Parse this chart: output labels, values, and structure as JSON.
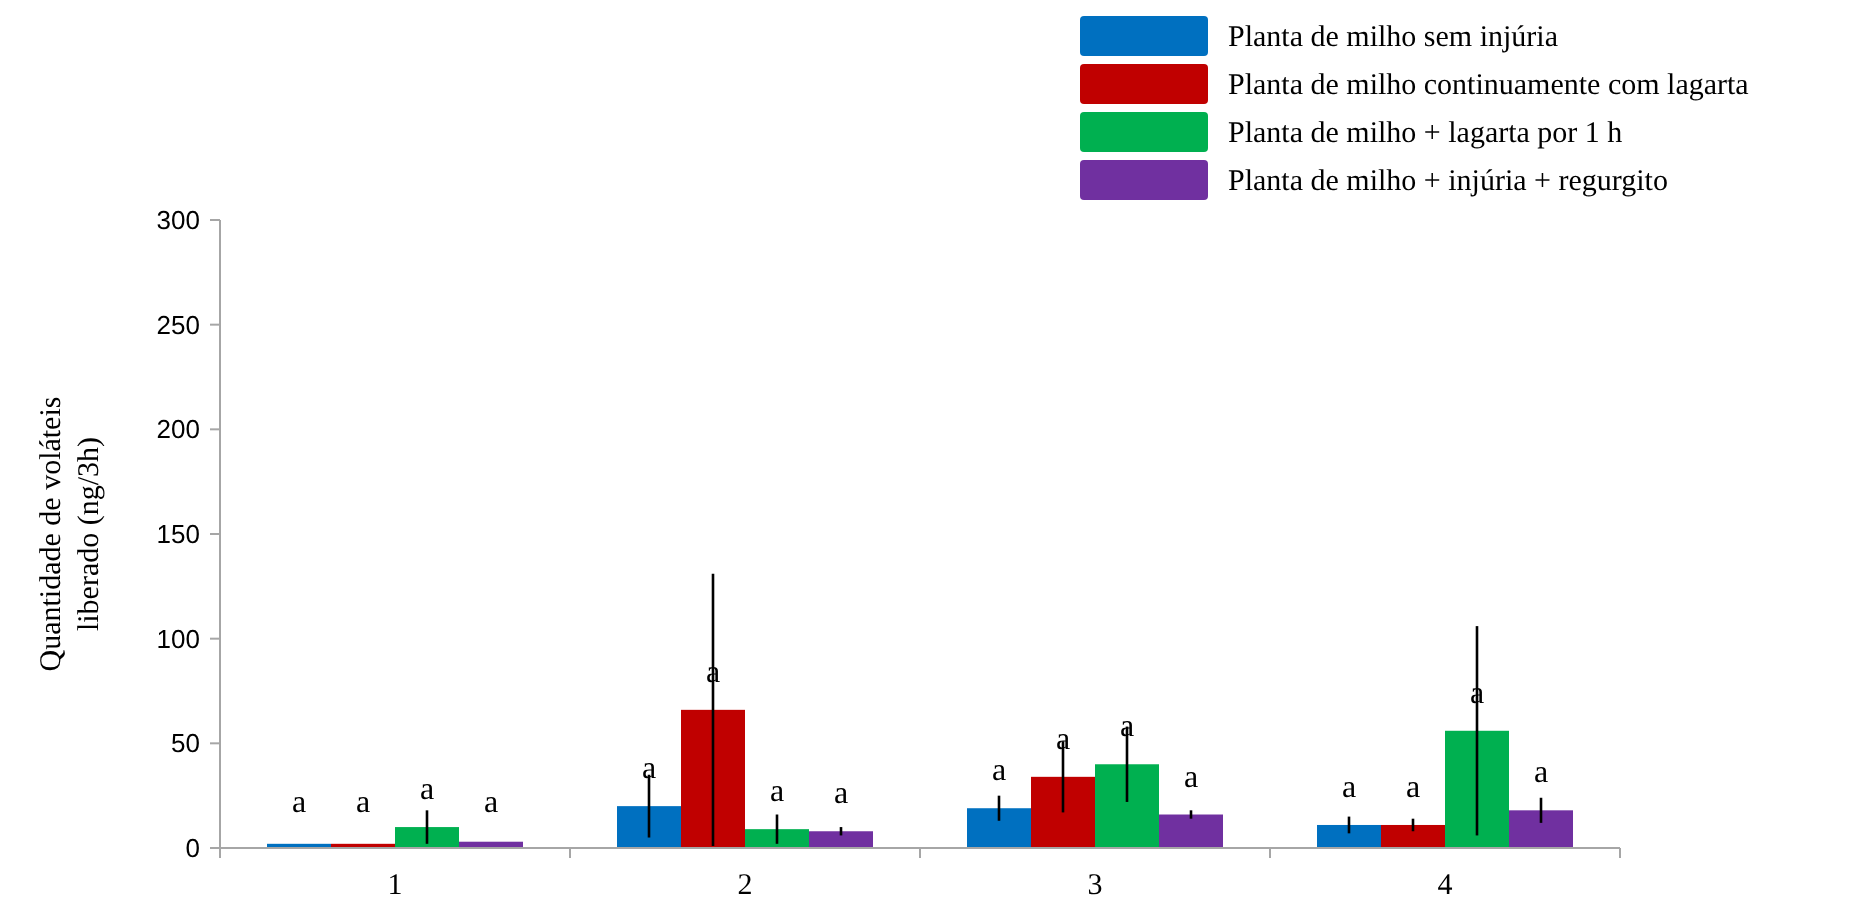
{
  "chart_data": {
    "type": "bar",
    "ylabel": "Quantidade de voláteis\nliberado (ng/3h)",
    "categories": [
      "1",
      "2",
      "3",
      "4"
    ],
    "series": [
      {
        "name": "Planta de milho sem injúria",
        "color": "#0070c0",
        "values": [
          2,
          20,
          19,
          11
        ],
        "errors": [
          null,
          15,
          6,
          4
        ]
      },
      {
        "name": "Planta de milho continuamente com lagarta",
        "color": "#c00000",
        "values": [
          2,
          66,
          34,
          11
        ],
        "errors": [
          null,
          65,
          17,
          3
        ]
      },
      {
        "name": "Planta de milho + lagarta por 1 h",
        "color": "#00b050",
        "values": [
          10,
          9,
          40,
          56
        ],
        "errors": [
          8,
          7,
          18,
          50
        ]
      },
      {
        "name": "Planta de milho + injúria + regurgito",
        "color": "#7030a0",
        "values": [
          3,
          8,
          16,
          18
        ],
        "errors": [
          null,
          2,
          2,
          6
        ]
      }
    ],
    "ylim": [
      0,
      300
    ],
    "yticks": [
      0,
      50,
      100,
      150,
      200,
      250,
      300
    ],
    "legend": "top right",
    "grid": false,
    "annotations": [
      "a",
      "a",
      "a",
      "a",
      "a",
      "a",
      "a",
      "a",
      "a",
      "a",
      "a",
      "a",
      "a",
      "a",
      "a",
      "a"
    ]
  }
}
